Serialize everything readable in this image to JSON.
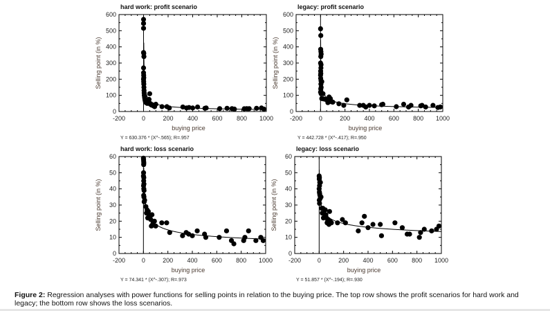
{
  "figure": {
    "caption_label": "Figure 2:",
    "caption_text": " Regression analyses with power functions for selling points in relation to the buying price. The top row shows the profit scenarios for hard work and legacy; the bottom row shows the loss scenarios."
  },
  "colors": {
    "marker": "#000000",
    "text": "#222222",
    "ylabel": "#4a3a30"
  },
  "chart_data": [
    {
      "type": "scatter",
      "title": "hard work: profit scenario",
      "xlabel": "buying price",
      "ylabel": "Selling point (in %)",
      "xlim": [
        -200,
        1000
      ],
      "ylim": [
        0,
        600
      ],
      "xticks": [
        -200,
        0,
        200,
        400,
        600,
        800,
        1000
      ],
      "yticks": [
        0,
        100,
        200,
        300,
        400,
        500,
        600
      ],
      "grid": false,
      "equation": "Y = 630.376 * (X^-.565); R=.957",
      "fit": {
        "a": 630.376,
        "b": -0.565,
        "r": 0.957
      },
      "points": [
        [
          0,
          570
        ],
        [
          0,
          545
        ],
        [
          0,
          515
        ],
        [
          0,
          365
        ],
        [
          2,
          360
        ],
        [
          3,
          340
        ],
        [
          0,
          270
        ],
        [
          0,
          240
        ],
        [
          1,
          225
        ],
        [
          2,
          210
        ],
        [
          0,
          200
        ],
        [
          1,
          185
        ],
        [
          2,
          170
        ],
        [
          3,
          150
        ],
        [
          4,
          130
        ],
        [
          5,
          115
        ],
        [
          6,
          100
        ],
        [
          8,
          90
        ],
        [
          10,
          80
        ],
        [
          12,
          70
        ],
        [
          15,
          60
        ],
        [
          20,
          55
        ],
        [
          30,
          50
        ],
        [
          40,
          60
        ],
        [
          45,
          75
        ],
        [
          50,
          110
        ],
        [
          55,
          45
        ],
        [
          65,
          40
        ],
        [
          80,
          35
        ],
        [
          90,
          30
        ],
        [
          100,
          45
        ],
        [
          150,
          30
        ],
        [
          190,
          30
        ],
        [
          210,
          22
        ],
        [
          320,
          28
        ],
        [
          350,
          22
        ],
        [
          370,
          25
        ],
        [
          400,
          22
        ],
        [
          440,
          28
        ],
        [
          500,
          20
        ],
        [
          510,
          22
        ],
        [
          620,
          18
        ],
        [
          680,
          20
        ],
        [
          720,
          18
        ],
        [
          740,
          15
        ],
        [
          820,
          17
        ],
        [
          840,
          18
        ],
        [
          860,
          18
        ],
        [
          920,
          20
        ],
        [
          960,
          22
        ],
        [
          980,
          15
        ]
      ]
    },
    {
      "type": "scatter",
      "title": "legacy: profit scenario",
      "xlabel": "buying price",
      "ylabel": "Selling point (in %)",
      "xlim": [
        -200,
        1000
      ],
      "ylim": [
        0,
        600
      ],
      "xticks": [
        -200,
        0,
        200,
        400,
        600,
        800,
        1000
      ],
      "yticks": [
        0,
        100,
        200,
        300,
        400,
        500,
        600
      ],
      "grid": false,
      "equation": "Y = 442.728 * (X^-.417); R=.950",
      "fit": {
        "a": 442.728,
        "b": -0.417,
        "r": 0.95
      },
      "points": [
        [
          0,
          512
        ],
        [
          2,
          470
        ],
        [
          1,
          385
        ],
        [
          3,
          370
        ],
        [
          5,
          355
        ],
        [
          2,
          340
        ],
        [
          0,
          300
        ],
        [
          4,
          290
        ],
        [
          3,
          270
        ],
        [
          1,
          250
        ],
        [
          2,
          235
        ],
        [
          0,
          225
        ],
        [
          1,
          205
        ],
        [
          4,
          190
        ],
        [
          10,
          185
        ],
        [
          3,
          170
        ],
        [
          5,
          150
        ],
        [
          2,
          140
        ],
        [
          0,
          120
        ],
        [
          5,
          110
        ],
        [
          20,
          110
        ],
        [
          10,
          80
        ],
        [
          25,
          78
        ],
        [
          40,
          75
        ],
        [
          55,
          70
        ],
        [
          60,
          55
        ],
        [
          70,
          90
        ],
        [
          80,
          80
        ],
        [
          85,
          65
        ],
        [
          90,
          60
        ],
        [
          100,
          58
        ],
        [
          150,
          48
        ],
        [
          190,
          38
        ],
        [
          215,
          72
        ],
        [
          320,
          38
        ],
        [
          350,
          38
        ],
        [
          370,
          28
        ],
        [
          400,
          38
        ],
        [
          440,
          35
        ],
        [
          500,
          42
        ],
        [
          510,
          45
        ],
        [
          620,
          30
        ],
        [
          680,
          45
        ],
        [
          720,
          28
        ],
        [
          740,
          38
        ],
        [
          820,
          35
        ],
        [
          830,
          38
        ],
        [
          860,
          28
        ],
        [
          920,
          38
        ],
        [
          960,
          25
        ],
        [
          980,
          28
        ]
      ]
    },
    {
      "type": "scatter",
      "title": "hard work: loss scenario",
      "xlabel": "buying price",
      "ylabel": "Selling point (in %)",
      "xlim": [
        -200,
        1000
      ],
      "ylim": [
        0,
        60
      ],
      "xticks": [
        -200,
        0,
        200,
        400,
        600,
        800,
        1000
      ],
      "yticks": [
        0,
        10,
        20,
        30,
        40,
        50,
        60
      ],
      "grid": false,
      "equation": "Y = 74.341 * (X^-.307); R=.973",
      "fit": {
        "a": 74.341,
        "b": -0.307,
        "r": 0.973
      },
      "points": [
        [
          0,
          59
        ],
        [
          1,
          58
        ],
        [
          2,
          57
        ],
        [
          3,
          56
        ],
        [
          2,
          55
        ],
        [
          1,
          50
        ],
        [
          0,
          48
        ],
        [
          3,
          47
        ],
        [
          2,
          45
        ],
        [
          4,
          43
        ],
        [
          1,
          42
        ],
        [
          3,
          40
        ],
        [
          5,
          39
        ],
        [
          2,
          36
        ],
        [
          4,
          35
        ],
        [
          10,
          33
        ],
        [
          6,
          32
        ],
        [
          20,
          29
        ],
        [
          30,
          27
        ],
        [
          25,
          25
        ],
        [
          40,
          26
        ],
        [
          45,
          24
        ],
        [
          35,
          22
        ],
        [
          55,
          23
        ],
        [
          60,
          21
        ],
        [
          70,
          24
        ],
        [
          75,
          18
        ],
        [
          65,
          17
        ],
        [
          80,
          19
        ],
        [
          90,
          20
        ],
        [
          100,
          17
        ],
        [
          150,
          19
        ],
        [
          190,
          19
        ],
        [
          215,
          13
        ],
        [
          320,
          11
        ],
        [
          350,
          13
        ],
        [
          370,
          12
        ],
        [
          400,
          11
        ],
        [
          440,
          14
        ],
        [
          500,
          12
        ],
        [
          510,
          10
        ],
        [
          620,
          10
        ],
        [
          680,
          14
        ],
        [
          720,
          8
        ],
        [
          740,
          6
        ],
        [
          820,
          8
        ],
        [
          830,
          10
        ],
        [
          860,
          14
        ],
        [
          920,
          8
        ],
        [
          960,
          10
        ],
        [
          980,
          8
        ]
      ]
    },
    {
      "type": "scatter",
      "title": "legacy: loss scenario",
      "xlabel": "buying price",
      "ylabel": "Selling point (in %)",
      "xlim": [
        -200,
        1000
      ],
      "ylim": [
        0,
        60
      ],
      "xticks": [
        -200,
        0,
        200,
        400,
        600,
        800,
        1000
      ],
      "yticks": [
        0,
        10,
        20,
        30,
        40,
        50,
        60
      ],
      "grid": false,
      "equation": "Y = 51.857 * (X^-.194); R=.930",
      "fit": {
        "a": 51.857,
        "b": -0.194,
        "r": 0.93
      },
      "points": [
        [
          0,
          48
        ],
        [
          2,
          47
        ],
        [
          1,
          46
        ],
        [
          5,
          44
        ],
        [
          10,
          44
        ],
        [
          3,
          42
        ],
        [
          0,
          40
        ],
        [
          2,
          38
        ],
        [
          4,
          37
        ],
        [
          6,
          36
        ],
        [
          15,
          35
        ],
        [
          8,
          34
        ],
        [
          1,
          33
        ],
        [
          3,
          31
        ],
        [
          20,
          28
        ],
        [
          30,
          28
        ],
        [
          25,
          25
        ],
        [
          35,
          22
        ],
        [
          45,
          24
        ],
        [
          50,
          27
        ],
        [
          55,
          24
        ],
        [
          60,
          22
        ],
        [
          65,
          19
        ],
        [
          70,
          20
        ],
        [
          75,
          21
        ],
        [
          80,
          18
        ],
        [
          85,
          26
        ],
        [
          90,
          20
        ],
        [
          100,
          19
        ],
        [
          150,
          19
        ],
        [
          190,
          21
        ],
        [
          215,
          19
        ],
        [
          320,
          14
        ],
        [
          350,
          19
        ],
        [
          370,
          23
        ],
        [
          400,
          16
        ],
        [
          440,
          18
        ],
        [
          500,
          18
        ],
        [
          510,
          11
        ],
        [
          620,
          19
        ],
        [
          680,
          16
        ],
        [
          720,
          12
        ],
        [
          740,
          12
        ],
        [
          820,
          10
        ],
        [
          830,
          13
        ],
        [
          860,
          15
        ],
        [
          920,
          14
        ],
        [
          960,
          15
        ],
        [
          980,
          17
        ]
      ]
    }
  ]
}
